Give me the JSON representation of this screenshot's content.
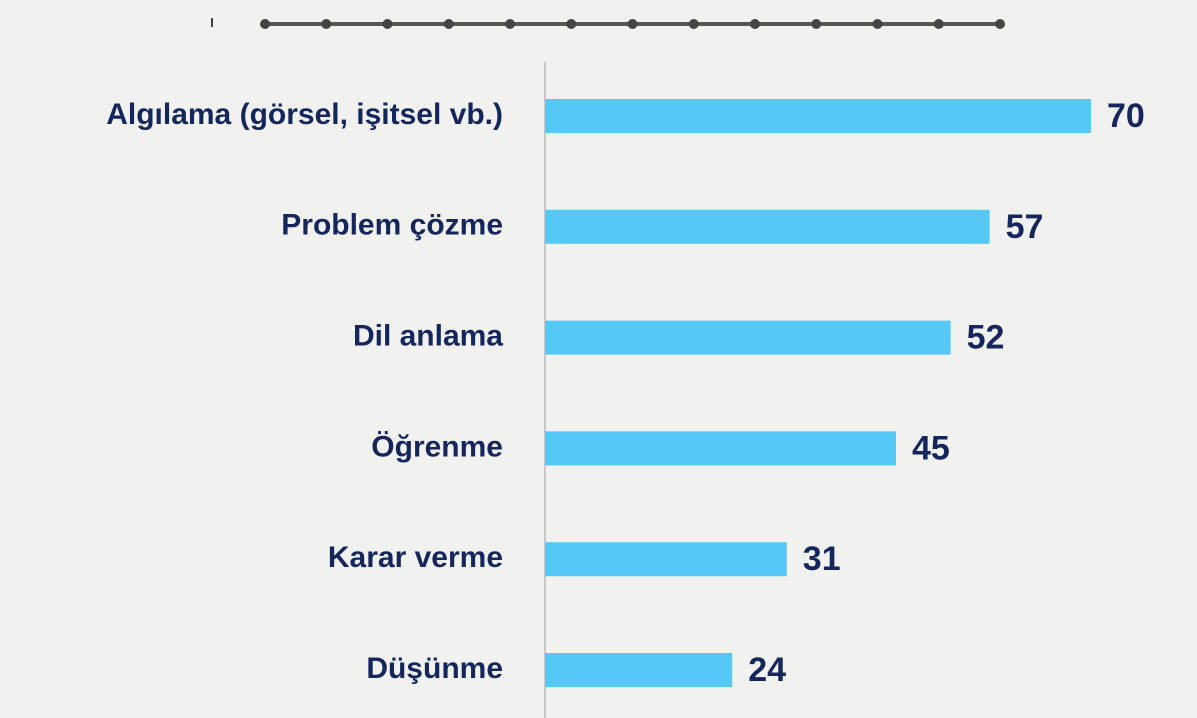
{
  "chart_data": {
    "type": "bar",
    "orientation": "horizontal",
    "categories": [
      "Algılama (görsel, işitsel vb.)",
      "Problem çözme",
      "Dil anlama",
      "Öğrenme",
      "Karar verme",
      "Düşünme"
    ],
    "values": [
      70,
      57,
      52,
      45,
      31,
      24
    ],
    "color": "#55c8f5"
  }
}
